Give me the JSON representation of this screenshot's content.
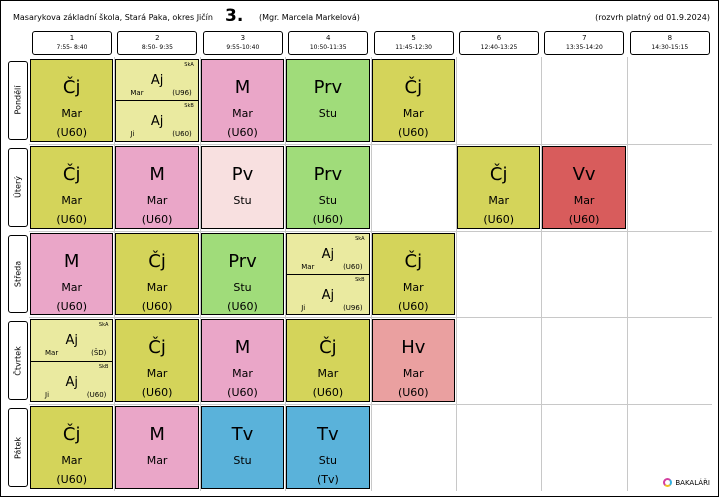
{
  "header": {
    "school": "Masarykova základní škola, Stará Paka, okres Jičín",
    "class_name": "3.",
    "teacher": "(Mgr. Marcela Markelová)",
    "valid_from": "(rozvrh platný od 01.9.2024)"
  },
  "periods": [
    {
      "num": "1",
      "time": "7:55- 8:40"
    },
    {
      "num": "2",
      "time": "8:50- 9:35"
    },
    {
      "num": "3",
      "time": "9:55-10:40"
    },
    {
      "num": "4",
      "time": "10:50-11:35"
    },
    {
      "num": "5",
      "time": "11:45-12:30"
    },
    {
      "num": "6",
      "time": "12:40-13:25"
    },
    {
      "num": "7",
      "time": "13:35-14:20"
    },
    {
      "num": "8",
      "time": "14:30-15:15"
    }
  ],
  "days": [
    "Pondělí",
    "Úterý",
    "Středa",
    "Čtvrtek",
    "Pátek"
  ],
  "lessons": [
    {
      "day": 0,
      "period": 0,
      "subject": "Čj",
      "teacher": "Mar",
      "room": "(U60)",
      "color": "cj"
    },
    {
      "day": 0,
      "period": 1,
      "split": [
        {
          "subject": "Aj",
          "group": "SkA",
          "teacher": "Mar",
          "room": "(U96)"
        },
        {
          "subject": "Aj",
          "group": "SkB",
          "teacher": "Ji",
          "room": "(U60)"
        }
      ],
      "color": "ajc"
    },
    {
      "day": 0,
      "period": 2,
      "subject": "M",
      "teacher": "Mar",
      "room": "(U60)",
      "color": "m"
    },
    {
      "day": 0,
      "period": 3,
      "subject": "Prv",
      "teacher": "Stu",
      "room": "",
      "color": "prv"
    },
    {
      "day": 0,
      "period": 4,
      "subject": "Čj",
      "teacher": "Mar",
      "room": "(U60)",
      "color": "cj"
    },
    {
      "day": 1,
      "period": 0,
      "subject": "Čj",
      "teacher": "Mar",
      "room": "(U60)",
      "color": "cj"
    },
    {
      "day": 1,
      "period": 1,
      "subject": "M",
      "teacher": "Mar",
      "room": "(U60)",
      "color": "m"
    },
    {
      "day": 1,
      "period": 2,
      "subject": "Pv",
      "teacher": "Stu",
      "room": "",
      "color": "pv"
    },
    {
      "day": 1,
      "period": 3,
      "subject": "Prv",
      "teacher": "Stu",
      "room": "(U60)",
      "color": "prv"
    },
    {
      "day": 1,
      "period": 5,
      "subject": "Čj",
      "teacher": "Mar",
      "room": "(U60)",
      "color": "cj"
    },
    {
      "day": 1,
      "period": 6,
      "subject": "Vv",
      "teacher": "Mar",
      "room": "(U60)",
      "color": "vv"
    },
    {
      "day": 2,
      "period": 0,
      "subject": "M",
      "teacher": "Mar",
      "room": "(U60)",
      "color": "m"
    },
    {
      "day": 2,
      "period": 1,
      "subject": "Čj",
      "teacher": "Mar",
      "room": "(U60)",
      "color": "cj"
    },
    {
      "day": 2,
      "period": 2,
      "subject": "Prv",
      "teacher": "Stu",
      "room": "(U60)",
      "color": "prv"
    },
    {
      "day": 2,
      "period": 3,
      "split": [
        {
          "subject": "Aj",
          "group": "SkA",
          "teacher": "Mar",
          "room": "(U60)"
        },
        {
          "subject": "Aj",
          "group": "SkB",
          "teacher": "Ji",
          "room": "(U96)"
        }
      ],
      "color": "ajc"
    },
    {
      "day": 2,
      "period": 4,
      "subject": "Čj",
      "teacher": "Mar",
      "room": "(U60)",
      "color": "cj"
    },
    {
      "day": 3,
      "period": 0,
      "split": [
        {
          "subject": "Aj",
          "group": "SkA",
          "teacher": "Mar",
          "room": "(ŠD)"
        },
        {
          "subject": "Aj",
          "group": "SkB",
          "teacher": "Ji",
          "room": "(U60)"
        }
      ],
      "color": "ajc"
    },
    {
      "day": 3,
      "period": 1,
      "subject": "Čj",
      "teacher": "Mar",
      "room": "(U60)",
      "color": "cj"
    },
    {
      "day": 3,
      "period": 2,
      "subject": "M",
      "teacher": "Mar",
      "room": "(U60)",
      "color": "m"
    },
    {
      "day": 3,
      "period": 3,
      "subject": "Čj",
      "teacher": "Mar",
      "room": "(U60)",
      "color": "cj"
    },
    {
      "day": 3,
      "period": 4,
      "subject": "Hv",
      "teacher": "Mar",
      "room": "(U60)",
      "color": "hv"
    },
    {
      "day": 4,
      "period": 0,
      "subject": "Čj",
      "teacher": "Mar",
      "room": "(U60)",
      "color": "cj"
    },
    {
      "day": 4,
      "period": 1,
      "subject": "M",
      "teacher": "Mar",
      "room": "",
      "color": "m"
    },
    {
      "day": 4,
      "period": 2,
      "subject": "Tv",
      "teacher": "Stu",
      "room": "",
      "color": "tv"
    },
    {
      "day": 4,
      "period": 3,
      "subject": "Tv",
      "teacher": "Stu",
      "room": "(Tv)",
      "color": "tv"
    }
  ],
  "logo_text": "BAKALÁŘI"
}
